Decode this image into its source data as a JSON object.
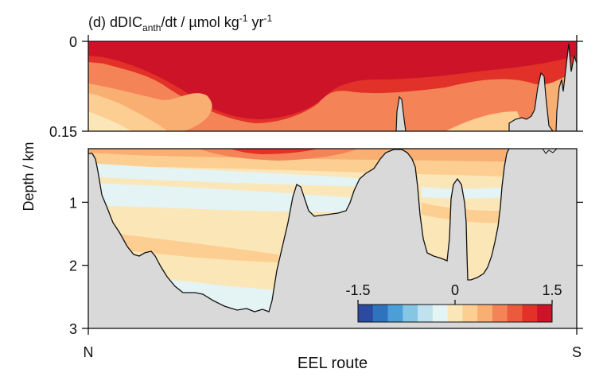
{
  "chart_data": {
    "type": "heatmap",
    "title": {
      "prefix": "(d) dDIC",
      "sub": "anth",
      "italic_mid": "/dt / ",
      "units_a": "µmol kg",
      "exp_a": "-1",
      "units_b": " yr",
      "exp_b": "-1"
    },
    "ylabel": "Depth / km",
    "xlabel": "EEL route",
    "x_tick_labels": [
      "N",
      "S"
    ],
    "top_panel": {
      "ylim": [
        0,
        0.15
      ],
      "y_ticks": [
        0,
        0.15
      ],
      "y_tick_labels": [
        "0",
        "0.15"
      ]
    },
    "bottom_panel": {
      "ylim": [
        0.15,
        3
      ],
      "y_ticks": [
        1,
        2,
        3
      ],
      "y_tick_labels": [
        "1",
        "2",
        "3"
      ]
    },
    "colorbar": {
      "range": [
        -1.5,
        1.5
      ],
      "tick_labels": [
        "-1.5",
        "0",
        "1.5"
      ],
      "colors": [
        "#2b4aa0",
        "#2f73be",
        "#4c9fd6",
        "#86c5e4",
        "#bfe2ee",
        "#e4f4f4",
        "#fbe6b8",
        "#fcce92",
        "#f9ae72",
        "#f48458",
        "#ec5a3e",
        "#e23128",
        "#cc1327"
      ]
    },
    "topography": {
      "x": [
        0,
        2,
        4,
        6,
        8,
        12,
        16,
        19,
        21,
        25,
        29,
        33,
        35,
        37,
        38,
        38.5,
        40,
        41,
        43,
        48,
        52,
        55,
        58,
        59.5,
        60,
        61.5,
        62,
        65,
        70,
        72,
        73,
        74,
        74.8,
        75,
        76,
        76.5,
        77,
        80,
        81.5,
        82,
        83,
        84,
        85,
        87,
        88,
        89,
        89.5,
        90,
        90.5,
        91,
        93,
        94,
        96,
        97,
        98,
        99,
        100
      ],
      "depth": [
        0.17,
        0.18,
        0.65,
        1.1,
        1.4,
        1.8,
        1.75,
        2.1,
        2.35,
        2.4,
        2.7,
        2.75,
        2.72,
        2.75,
        2.1,
        1.3,
        0.6,
        0.8,
        1.3,
        1.25,
        0.7,
        0.4,
        0.15,
        0.05,
        0.01,
        0.15,
        0.25,
        1.3,
        1.4,
        1.85,
        1.9,
        0.6,
        0.5,
        0.5,
        0.85,
        2.3,
        2.2,
        2.1,
        1.3,
        0.17,
        0.14,
        0.13,
        0.12,
        0.11,
        0.08,
        0.05,
        0.12,
        0.05,
        0.12,
        0.18,
        0.1,
        0.02,
        0.15,
        0.04,
        0.06,
        0.01,
        0.05
      ]
    }
  }
}
